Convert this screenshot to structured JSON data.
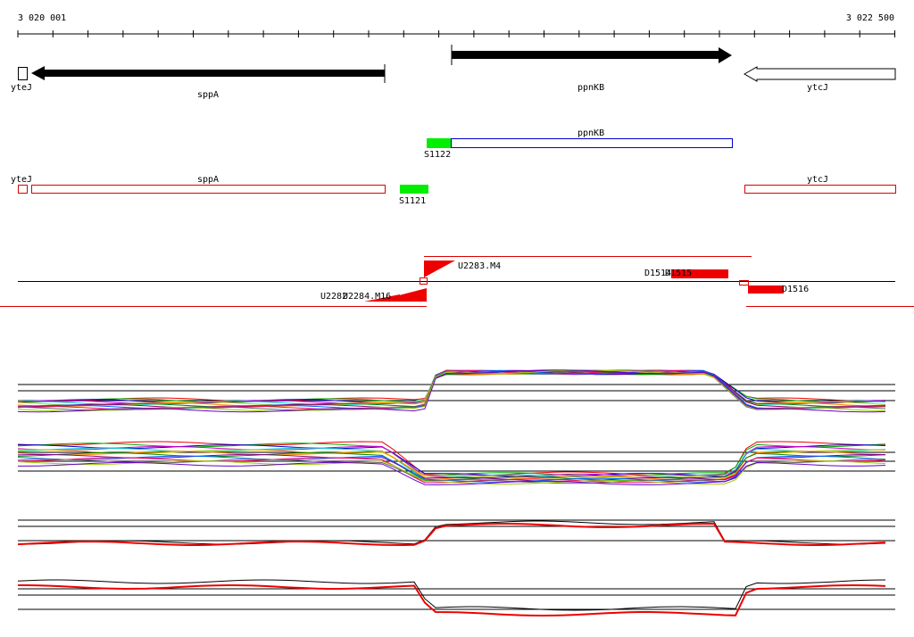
{
  "ruler": {
    "start": "3 020 001",
    "end": "3 022 500"
  },
  "genes": [
    {
      "label": "yteJ"
    },
    {
      "label": "sppA"
    },
    {
      "label": "ppnKB"
    },
    {
      "label": "ytcJ"
    }
  ],
  "transcripts": [
    {
      "label": "ppnKB"
    },
    {
      "label": "S1122"
    }
  ],
  "annotations": [
    {
      "label": "yteJ"
    },
    {
      "label": "sppA"
    },
    {
      "label": "ytcJ"
    },
    {
      "label": "S1121"
    }
  ],
  "features": [
    {
      "label": "U2283.M4"
    },
    {
      "label": "D1514"
    },
    {
      "label": "D1515"
    },
    {
      "label": "D1516"
    },
    {
      "label": "U2282"
    },
    {
      "label": "U2284.M16"
    }
  ]
}
